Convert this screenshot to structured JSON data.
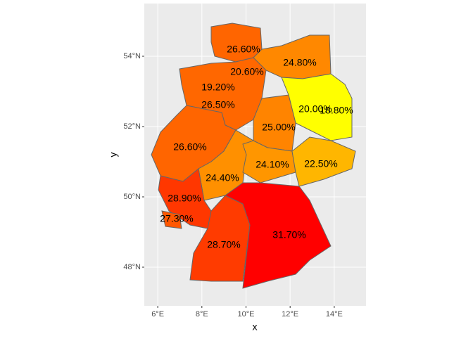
{
  "chart_data": {
    "type": "choropleth",
    "xlabel": "x",
    "ylabel": "y",
    "xlim": [
      5.39,
      15.44
    ],
    "ylim": [
      46.9,
      55.5
    ],
    "xticks": [
      {
        "value": 6,
        "label": "6°E"
      },
      {
        "value": 8,
        "label": "8°E"
      },
      {
        "value": 10,
        "label": "10°E"
      },
      {
        "value": 12,
        "label": "12°E"
      },
      {
        "value": 14,
        "label": "14°E"
      }
    ],
    "yticks": [
      {
        "value": 48,
        "label": "48°N"
      },
      {
        "value": 50,
        "label": "50°N"
      },
      {
        "value": 52,
        "label": "52°N"
      },
      {
        "value": 54,
        "label": "54°N"
      }
    ],
    "grid": true,
    "scale_colors": [
      "#ffff00",
      "#ff0000"
    ],
    "values": [
      26.6,
      20.6,
      24.8,
      19.2,
      26.5,
      20.0,
      18.8,
      25.0,
      26.6,
      24.4,
      24.1,
      22.5,
      28.9,
      27.3,
      28.7,
      31.7
    ],
    "value_labels": [
      "26.60%",
      "20.60%",
      "24.80%",
      "19.20%",
      "26.50%",
      "20.00%",
      "18.80%",
      "25.00%",
      "26.60%",
      "24.40%",
      "24.10%",
      "22.50%",
      "28.90%",
      "27.30%",
      "28.70%",
      "31.70%"
    ]
  }
}
